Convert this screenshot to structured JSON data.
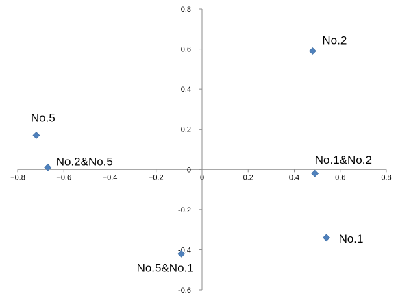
{
  "chart_data": {
    "type": "scatter",
    "title": "",
    "xlabel": "",
    "ylabel": "",
    "xlim": [
      -0.8,
      0.8
    ],
    "ylim": [
      -0.6,
      0.8
    ],
    "x_ticks": [
      "-0.8",
      "-0.6",
      "-0.4",
      "-0.2",
      "0",
      "0.2",
      "0.4",
      "0.6",
      "0.8"
    ],
    "y_ticks": [
      "0.8",
      "0.6",
      "0.4",
      "0.2",
      "0",
      "-0.2",
      "-0.4",
      "-0.6"
    ],
    "grid": false,
    "marker": "diamond",
    "marker_color": "#4f81bd",
    "points": [
      {
        "label": "No.2",
        "x": 0.48,
        "y": 0.59
      },
      {
        "label": "No.5",
        "x": -0.72,
        "y": 0.17
      },
      {
        "label": "No.2&No.5",
        "x": -0.67,
        "y": 0.01
      },
      {
        "label": "No.1&No.2",
        "x": 0.49,
        "y": -0.02
      },
      {
        "label": "No.1",
        "x": 0.54,
        "y": -0.34
      },
      {
        "label": "No.5&No.1",
        "x": -0.09,
        "y": -0.42
      }
    ]
  }
}
